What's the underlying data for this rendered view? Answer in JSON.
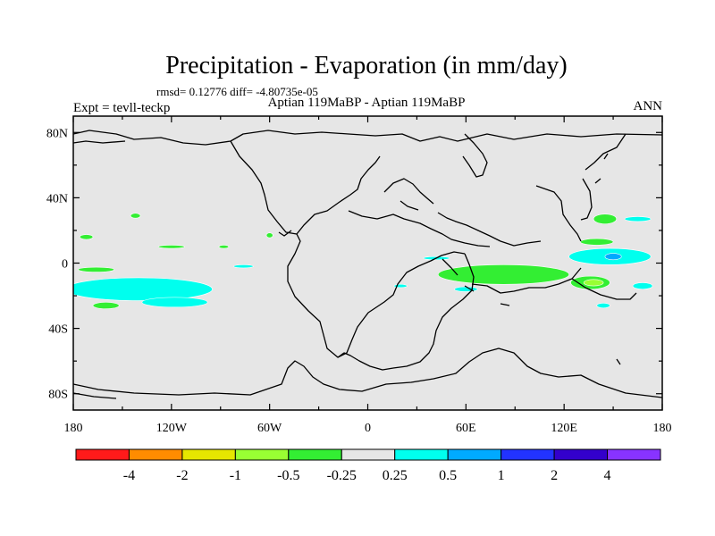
{
  "chart_data": {
    "type": "heatmap",
    "title": "Precipitation - Evaporation (in mm/day)",
    "stats_line": "rmsd= 0.12776 diff= -4.80735e-05",
    "left_label": "Expt = tevll-teckp",
    "center_label": "Aptian   119MaBP - Aptian   119MaBP",
    "right_label": "ANN",
    "projection": "cylindrical-equidistant",
    "xlim": [
      -180,
      180
    ],
    "ylim": [
      -90,
      90
    ],
    "x_ticks": [
      {
        "value": -180,
        "label": "180"
      },
      {
        "value": -120,
        "label": "120W"
      },
      {
        "value": -60,
        "label": "60W"
      },
      {
        "value": 0,
        "label": "0"
      },
      {
        "value": 60,
        "label": "60E"
      },
      {
        "value": 120,
        "label": "120E"
      },
      {
        "value": 180,
        "label": "180"
      }
    ],
    "y_ticks": [
      {
        "value": 80,
        "label": "80N"
      },
      {
        "value": 40,
        "label": "40N"
      },
      {
        "value": 0,
        "label": "0"
      },
      {
        "value": -40,
        "label": "40S"
      },
      {
        "value": -80,
        "label": "80S"
      }
    ],
    "colorbar": {
      "levels": [
        "-4",
        "-2",
        "-1",
        "-0.5",
        "-0.25",
        "0.25",
        "0.5",
        "1",
        "2",
        "4"
      ],
      "colors": [
        "#ff1a1a",
        "#ff8c00",
        "#e6e600",
        "#99ff33",
        "#33ee33",
        "#e6e6e6",
        "#00ffee",
        "#00aaff",
        "#2233ff",
        "#3300cc",
        "#8833ff"
      ]
    },
    "background_color": "#e6e6e6",
    "anomaly_regions": [
      {
        "lon": -152,
        "lat": -14,
        "width": 30,
        "height": 6,
        "level_index": 7
      },
      {
        "lon": -140,
        "lat": -16,
        "width": 90,
        "height": 14,
        "level_index": 6
      },
      {
        "lon": -118,
        "lat": -24,
        "width": 40,
        "height": 6,
        "level_index": 6
      },
      {
        "lon": -166,
        "lat": -4,
        "width": 22,
        "height": 3,
        "level_index": 4
      },
      {
        "lon": -160,
        "lat": -26,
        "width": 16,
        "height": 4,
        "level_index": 4
      },
      {
        "lon": -142,
        "lat": 29,
        "width": 6,
        "height": 3,
        "level_index": 4
      },
      {
        "lon": -172,
        "lat": 16,
        "width": 8,
        "height": 3,
        "level_index": 4
      },
      {
        "lon": -120,
        "lat": 10,
        "width": 16,
        "height": 2,
        "level_index": 4
      },
      {
        "lon": -88,
        "lat": 10,
        "width": 6,
        "height": 2,
        "level_index": 4
      },
      {
        "lon": -76,
        "lat": -2,
        "width": 12,
        "height": 2,
        "level_index": 6
      },
      {
        "lon": -60,
        "lat": 17,
        "width": 4,
        "height": 3,
        "level_index": 4
      },
      {
        "lon": 20,
        "lat": -14,
        "width": 8,
        "height": 2,
        "level_index": 6
      },
      {
        "lon": 42,
        "lat": 3,
        "width": 16,
        "height": 2,
        "level_index": 6
      },
      {
        "lon": 83,
        "lat": -7,
        "width": 80,
        "height": 12,
        "level_index": 4
      },
      {
        "lon": 136,
        "lat": -12,
        "width": 24,
        "height": 8,
        "level_index": 4
      },
      {
        "lon": 138,
        "lat": -12,
        "width": 12,
        "height": 4,
        "level_index": 3
      },
      {
        "lon": 148,
        "lat": 4,
        "width": 50,
        "height": 10,
        "level_index": 6
      },
      {
        "lon": 150,
        "lat": 4,
        "width": 10,
        "height": 4,
        "level_index": 7
      },
      {
        "lon": 140,
        "lat": 13,
        "width": 20,
        "height": 4,
        "level_index": 4
      },
      {
        "lon": 145,
        "lat": 27,
        "width": 14,
        "height": 6,
        "level_index": 4
      },
      {
        "lon": 165,
        "lat": 27,
        "width": 16,
        "height": 3,
        "level_index": 6
      },
      {
        "lon": 168,
        "lat": -14,
        "width": 12,
        "height": 4,
        "level_index": 6
      },
      {
        "lon": 60,
        "lat": -16,
        "width": 14,
        "height": 3,
        "level_index": 6
      },
      {
        "lon": 144,
        "lat": -26,
        "width": 8,
        "height": 3,
        "level_index": 6
      }
    ]
  }
}
